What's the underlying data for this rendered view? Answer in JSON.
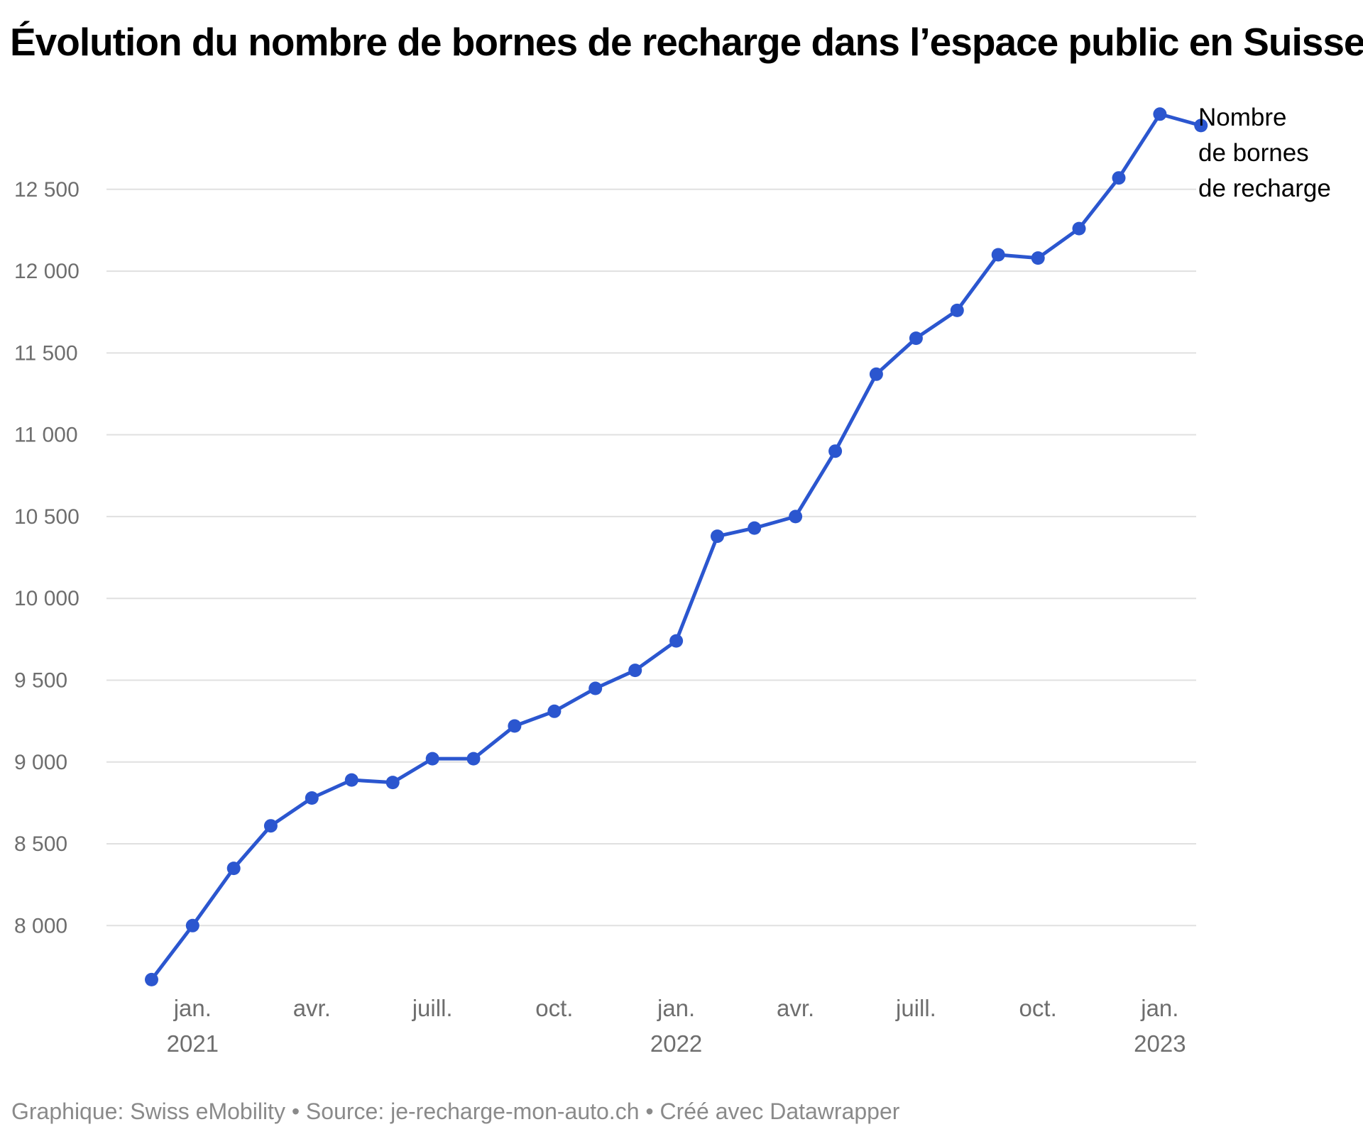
{
  "title": "Évolution du nombre de bornes de recharge dans l’espace public en Suisse",
  "footer": {
    "graphique_label": "Graphique:",
    "graphique": "Swiss eMobility",
    "sep1": "•",
    "source_label": "Source:",
    "source": "je-recharge-mon-auto.ch",
    "sep2": "•",
    "created": "Créé avec Datawrapper"
  },
  "colors": {
    "series": "#2b56cf",
    "grid": "#e0e0e0",
    "tick_text": "#6e6e6e"
  },
  "chart_data": {
    "type": "line",
    "title": "Évolution du nombre de bornes de recharge dans l’espace public en Suisse",
    "xlabel": "",
    "ylabel": "",
    "ylim": [
      7650,
      13050
    ],
    "xlim": [
      "2020-11-12",
      "2023-01-15"
    ],
    "grid": true,
    "legend": "right-inline",
    "y_ticks": [
      {
        "value": 8000,
        "label": "8 000"
      },
      {
        "value": 8500,
        "label": "8 500"
      },
      {
        "value": 9000,
        "label": "9 000"
      },
      {
        "value": 9500,
        "label": "9 500"
      },
      {
        "value": 10000,
        "label": "10 000"
      },
      {
        "value": 10500,
        "label": "10 500"
      },
      {
        "value": 11000,
        "label": "11 000"
      },
      {
        "value": 11500,
        "label": "11 500"
      },
      {
        "value": 12000,
        "label": "12 000"
      },
      {
        "value": 12500,
        "label": "12 500"
      }
    ],
    "x_ticks": [
      {
        "date": "2021-01-01",
        "label": "jan.",
        "year": "2021"
      },
      {
        "date": "2021-04-01",
        "label": "avr.",
        "year": ""
      },
      {
        "date": "2021-07-01",
        "label": "juill.",
        "year": ""
      },
      {
        "date": "2021-10-01",
        "label": "oct.",
        "year": ""
      },
      {
        "date": "2022-01-01",
        "label": "jan.",
        "year": "2022"
      },
      {
        "date": "2022-04-01",
        "label": "avr.",
        "year": ""
      },
      {
        "date": "2022-07-01",
        "label": "juill.",
        "year": ""
      },
      {
        "date": "2022-10-01",
        "label": "oct.",
        "year": ""
      },
      {
        "date": "2023-01-01",
        "label": "jan.",
        "year": "2023"
      }
    ],
    "series": [
      {
        "name": "Nombre de bornes de recharge",
        "name_lines": [
          "Nombre",
          "de bornes",
          "de recharge"
        ],
        "points": [
          {
            "date": "2020-12-01",
            "value": 7670
          },
          {
            "date": "2021-01-01",
            "value": 8000
          },
          {
            "date": "2021-02-01",
            "value": 8350
          },
          {
            "date": "2021-03-01",
            "value": 8610
          },
          {
            "date": "2021-04-01",
            "value": 8780
          },
          {
            "date": "2021-05-01",
            "value": 8890
          },
          {
            "date": "2021-06-01",
            "value": 8875
          },
          {
            "date": "2021-07-01",
            "value": 9020
          },
          {
            "date": "2021-08-01",
            "value": 9020
          },
          {
            "date": "2021-09-01",
            "value": 9220
          },
          {
            "date": "2021-10-01",
            "value": 9310
          },
          {
            "date": "2021-11-01",
            "value": 9450
          },
          {
            "date": "2021-12-01",
            "value": 9560
          },
          {
            "date": "2022-01-01",
            "value": 9740
          },
          {
            "date": "2022-02-01",
            "value": 10380
          },
          {
            "date": "2022-03-01",
            "value": 10430
          },
          {
            "date": "2022-04-01",
            "value": 10500
          },
          {
            "date": "2022-05-01",
            "value": 10900
          },
          {
            "date": "2022-06-01",
            "value": 11370
          },
          {
            "date": "2022-07-01",
            "value": 11590
          },
          {
            "date": "2022-08-01",
            "value": 11760
          },
          {
            "date": "2022-09-01",
            "value": 12100
          },
          {
            "date": "2022-10-01",
            "value": 12080
          },
          {
            "date": "2022-11-01",
            "value": 12260
          },
          {
            "date": "2022-12-01",
            "value": 12570
          },
          {
            "date": "2023-01-01",
            "value": 12960
          },
          {
            "date": "2023-02-01",
            "value": 12890
          }
        ]
      }
    ]
  }
}
